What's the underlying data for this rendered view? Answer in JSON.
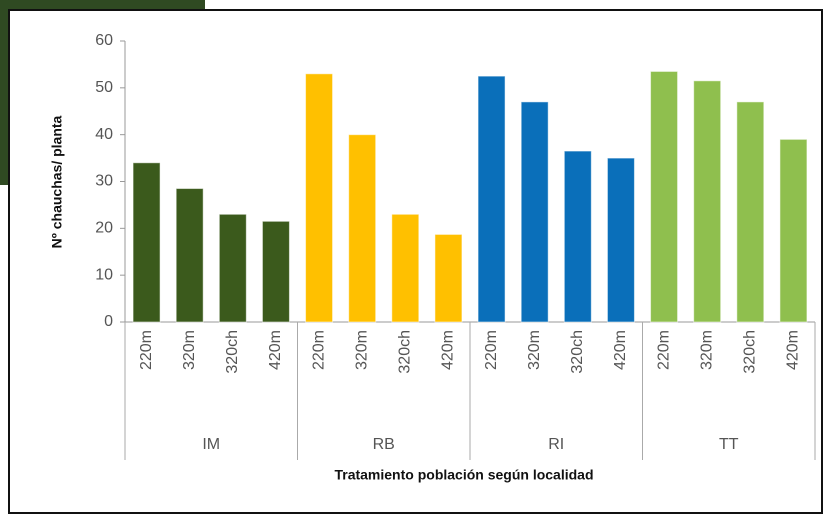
{
  "chart_data": {
    "type": "grouped_bar",
    "y_label": "Nº chauchas/ planta",
    "x_label": "Tratamiento población según localidad",
    "ylim": [
      0,
      60
    ],
    "yticks": [
      0,
      10,
      20,
      30,
      40,
      50,
      60
    ],
    "groups": [
      {
        "name": "IM",
        "color": "#3b5a1c",
        "categories": [
          "220m",
          "320m",
          "320ch",
          "420m"
        ],
        "values": [
          34,
          28.5,
          23,
          21.5
        ]
      },
      {
        "name": "RB",
        "color": "#ffc000",
        "categories": [
          "220m",
          "320m",
          "320ch",
          "420m"
        ],
        "values": [
          53,
          40,
          23,
          18.7
        ]
      },
      {
        "name": "RI",
        "color": "#0a6fba",
        "categories": [
          "220m",
          "320m",
          "320ch",
          "420m"
        ],
        "values": [
          52.5,
          47,
          36.5,
          35
        ]
      },
      {
        "name": "TT",
        "color": "#8fbf4e",
        "categories": [
          "220m",
          "320m",
          "320ch",
          "420m"
        ],
        "values": [
          53.5,
          51.5,
          47,
          39
        ]
      }
    ]
  }
}
